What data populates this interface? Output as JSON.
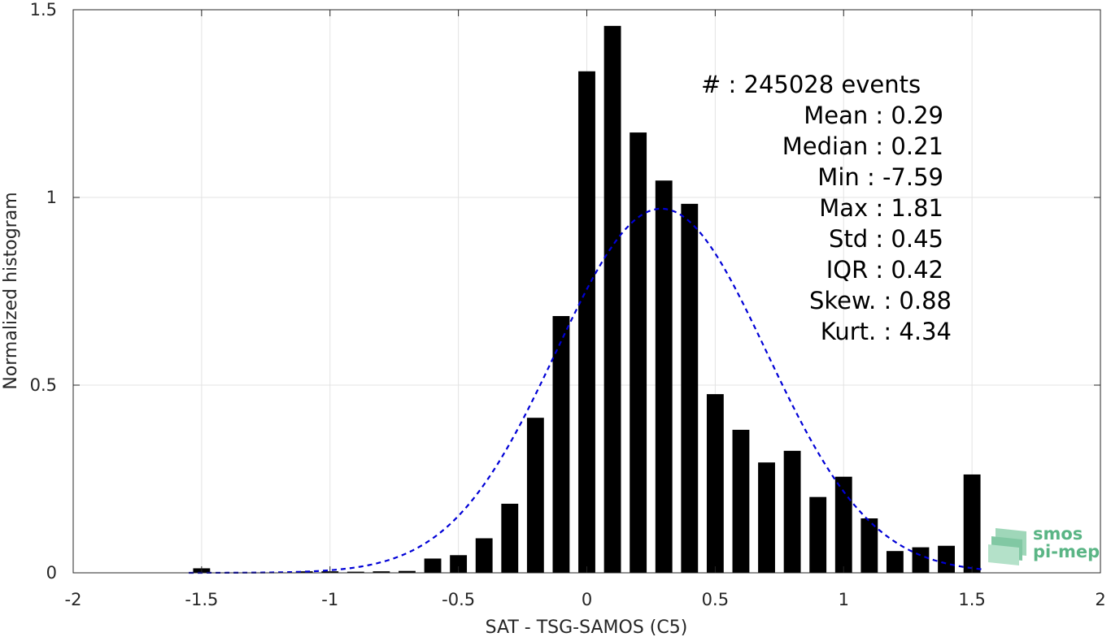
{
  "chart_data": {
    "type": "bar",
    "xlabel": "SAT - TSG-SAMOS (C5)",
    "ylabel": "Normalized histogram",
    "xlim": [
      -2,
      2
    ],
    "ylim": [
      0,
      1.5
    ],
    "x_ticks": [
      -2,
      -1.5,
      -1,
      -0.5,
      0,
      0.5,
      1,
      1.5,
      2
    ],
    "x_tick_labels": [
      "-2",
      "-1.5",
      "-1",
      "-0.5",
      "0",
      "0.5",
      "1",
      "1.5",
      "2"
    ],
    "y_ticks": [
      0,
      0.5,
      1,
      1.5
    ],
    "y_tick_labels": [
      "0",
      "0.5",
      "1",
      "1.5"
    ],
    "grid": true,
    "bar_color": "#000000",
    "bin_centers": [
      -1.5,
      -1.4,
      -1.3,
      -1.2,
      -1.1,
      -1.0,
      -0.9,
      -0.8,
      -0.7,
      -0.6,
      -0.5,
      -0.4,
      -0.3,
      -0.2,
      -0.1,
      0.0,
      0.1,
      0.2,
      0.3,
      0.4,
      0.5,
      0.6,
      0.7,
      0.8,
      0.9,
      1.0,
      1.1,
      1.2,
      1.3,
      1.4,
      1.5
    ],
    "values": [
      0.012,
      0.0,
      0.0,
      0.0,
      0.004,
      0.004,
      0.003,
      0.004,
      0.005,
      0.038,
      0.047,
      0.092,
      0.184,
      0.413,
      0.684,
      1.336,
      1.457,
      1.173,
      1.045,
      0.983,
      0.476,
      0.381,
      0.294,
      0.325,
      0.202,
      0.256,
      0.145,
      0.058,
      0.068,
      0.072,
      0.262
    ],
    "fit_curve": {
      "type": "normal",
      "color": "#0000d6",
      "style": "dashed",
      "mean": 0.29,
      "std": 0.41,
      "peak": 0.97
    },
    "stats": [
      {
        "label": "#  ",
        "value": "245028 events"
      },
      {
        "label": "Mean",
        "value": "0.29"
      },
      {
        "label": "Median",
        "value": "0.21"
      },
      {
        "label": "Min",
        "value": "-7.59"
      },
      {
        "label": "Max",
        "value": "1.81"
      },
      {
        "label": "Std",
        "value": "0.45"
      },
      {
        "label": "IQR",
        "value": "0.42"
      },
      {
        "label": "Skew.",
        "value": "0.88"
      },
      {
        "label": "Kurt.",
        "value": "4.34"
      }
    ],
    "stats_lines": [
      "#  : 245028 events",
      "Mean : 0.29",
      "Median : 0.21",
      "Min : -7.59",
      "Max : 1.81",
      "Std : 0.45",
      "IQR : 0.42",
      "Skew. : 0.88",
      "Kurt. : 4.34"
    ]
  },
  "logo": {
    "line1": "smos",
    "line2": "pi-mep",
    "color": "#5ab585"
  }
}
